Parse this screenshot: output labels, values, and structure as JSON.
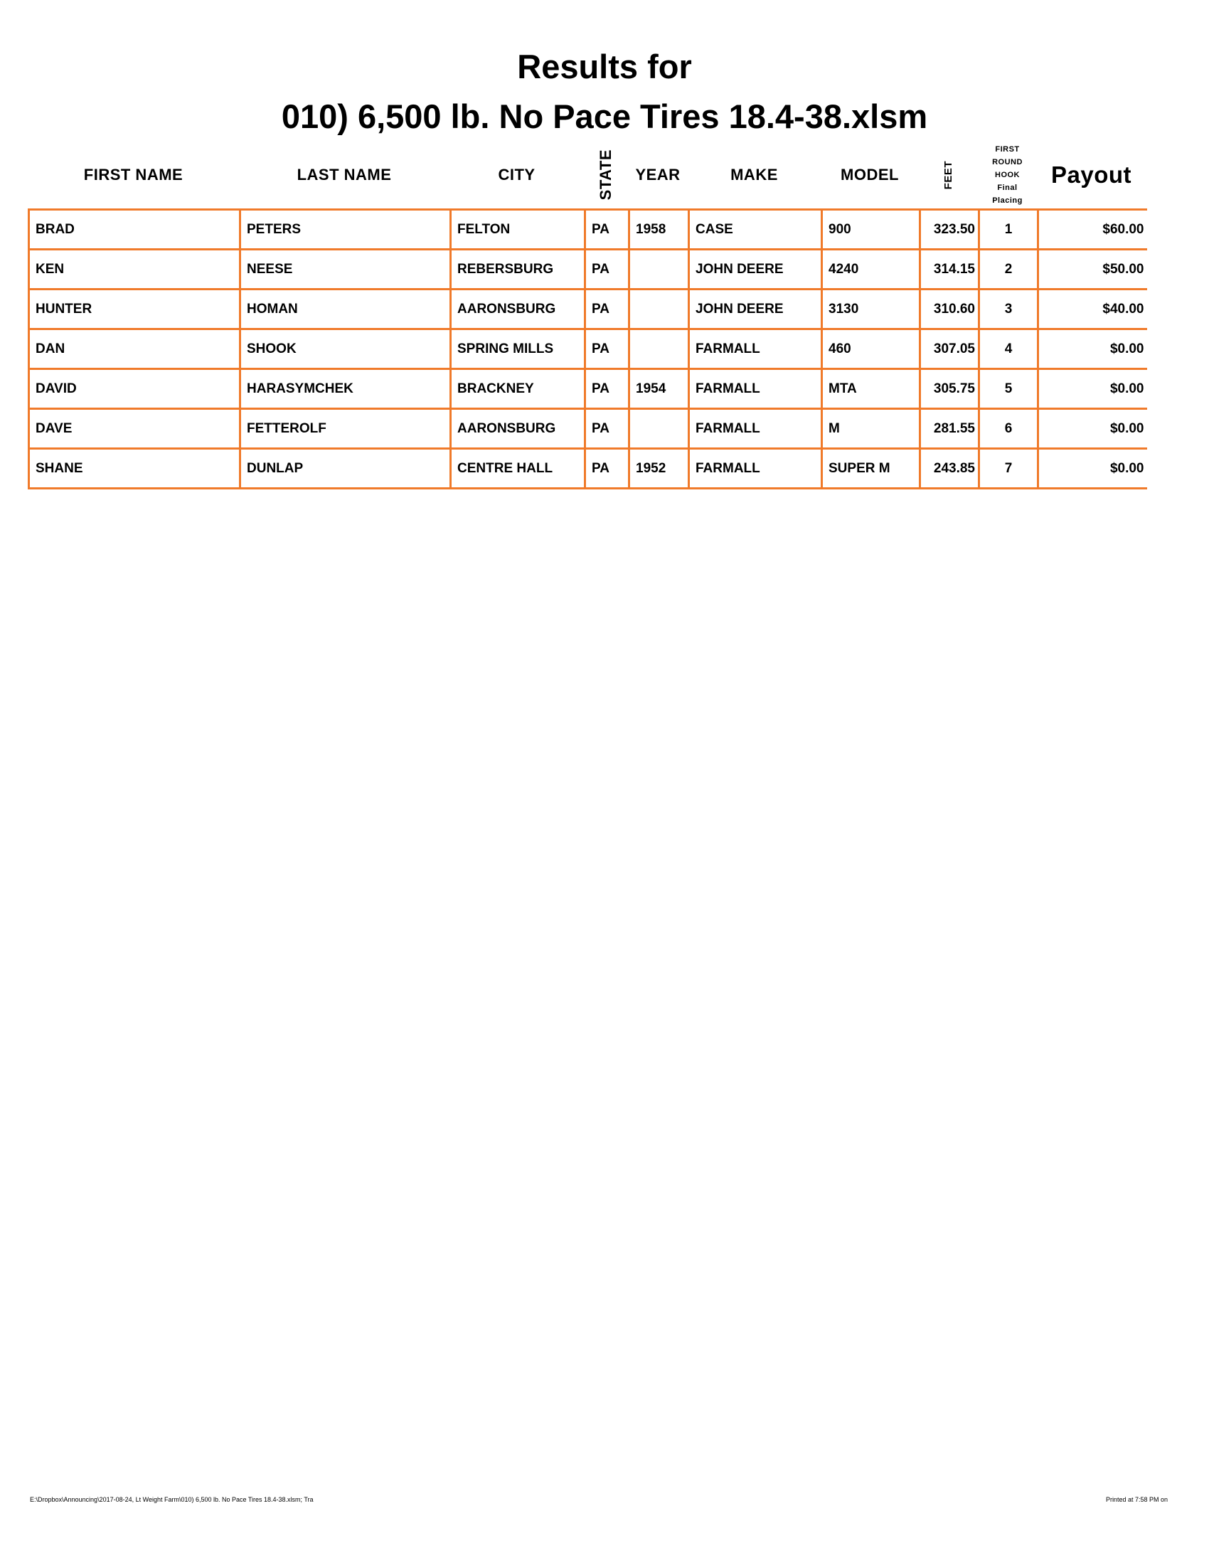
{
  "title_line1": "Results for",
  "title_line2": "010) 6,500 lb. No Pace Tires 18.4-38.xlsm",
  "headers": {
    "first": "FIRST NAME",
    "last": "LAST NAME",
    "city": "CITY",
    "state": "STATE",
    "year": "YEAR",
    "make": "MAKE",
    "model": "MODEL",
    "feet": "FEET",
    "hook": [
      "FIRST",
      "ROUND",
      "HOOK",
      "Final",
      "Placing"
    ],
    "payout": "Payout"
  },
  "rows": [
    [
      "BRAD",
      "PETERS",
      "FELTON",
      "PA",
      "1958",
      "CASE",
      "900",
      "323.50",
      "1",
      "$60.00"
    ],
    [
      "KEN",
      "NEESE",
      "REBERSBURG",
      "PA",
      "",
      "JOHN DEERE",
      "4240",
      "314.15",
      "2",
      "$50.00"
    ],
    [
      "HUNTER",
      "HOMAN",
      "AARONSBURG",
      "PA",
      "",
      "JOHN DEERE",
      "3130",
      "310.60",
      "3",
      "$40.00"
    ],
    [
      "DAN",
      "SHOOK",
      "SPRING MILLS",
      "PA",
      "",
      "FARMALL",
      "460",
      "307.05",
      "4",
      "$0.00"
    ],
    [
      "DAVID",
      "HARASYMCHEK",
      "BRACKNEY",
      "PA",
      "1954",
      "FARMALL",
      "MTA",
      "305.75",
      "5",
      "$0.00"
    ],
    [
      "DAVE",
      "FETTEROLF",
      "AARONSBURG",
      "PA",
      "",
      "FARMALL",
      "M",
      "281.55",
      "6",
      "$0.00"
    ],
    [
      "SHANE",
      "DUNLAP",
      "CENTRE HALL",
      "PA",
      "1952",
      "FARMALL",
      "SUPER M",
      "243.85",
      "7",
      "$0.00"
    ]
  ],
  "footer_left": "E:\\Dropbox\\Announcing\\2017-08-24, Lt Weight Farm\\010) 6,500 lb. No Pace Tires 18.4-38.xlsm; Tra",
  "footer_right": "Printed at 7:58 PM on",
  "colors": {
    "border": "#f07a2a"
  }
}
